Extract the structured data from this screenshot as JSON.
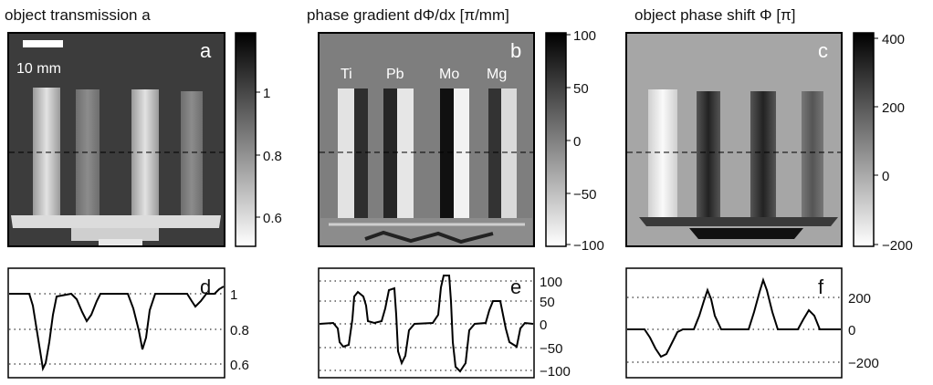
{
  "figure": {
    "panels": [
      {
        "id": "a",
        "title": "object transmission a",
        "letter": "a",
        "scalebar_label": "10 mm",
        "colorbar_ticks": [
          "1",
          "0.8",
          "0.6"
        ]
      },
      {
        "id": "b",
        "title": "phase gradient dΦ/dx [π/mm]",
        "letter": "b",
        "sample_labels": [
          "Ti",
          "Pb",
          "Mo",
          "Mg"
        ],
        "colorbar_ticks": [
          "100",
          "50",
          "0",
          "−50",
          "−100"
        ]
      },
      {
        "id": "c",
        "title": "object phase shift Φ [π]",
        "letter": "c",
        "colorbar_ticks": [
          "400",
          "200",
          "0",
          "−200"
        ]
      }
    ],
    "profiles": [
      {
        "id": "d",
        "letter": "d",
        "ticks": [
          "1",
          "0.8",
          "0.6"
        ]
      },
      {
        "id": "e",
        "letter": "e",
        "ticks": [
          "100",
          "50",
          "0",
          "−50",
          "−100"
        ]
      },
      {
        "id": "f",
        "letter": "f",
        "ticks": [
          "200",
          "0",
          "−200"
        ]
      }
    ]
  }
}
